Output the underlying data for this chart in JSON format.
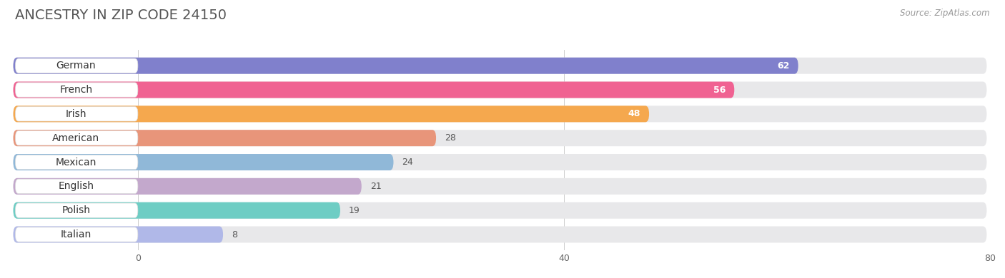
{
  "title": "ANCESTRY IN ZIP CODE 24150",
  "source": "Source: ZipAtlas.com",
  "categories": [
    "German",
    "French",
    "Irish",
    "American",
    "Mexican",
    "English",
    "Polish",
    "Italian"
  ],
  "values": [
    62,
    56,
    48,
    28,
    24,
    21,
    19,
    8
  ],
  "bar_colors": [
    "#8080cc",
    "#f06292",
    "#f5a84e",
    "#e8957a",
    "#90b8d8",
    "#c3a8cc",
    "#6ecdc4",
    "#b0b8e8"
  ],
  "xlim": [
    0,
    80
  ],
  "xticks": [
    0,
    40,
    80
  ],
  "background_color": "#ffffff",
  "bar_bg_color": "#e8e8ea",
  "title_fontsize": 14,
  "label_fontsize": 10,
  "value_fontsize": 9,
  "bar_height": 0.68,
  "value_threshold": 40
}
